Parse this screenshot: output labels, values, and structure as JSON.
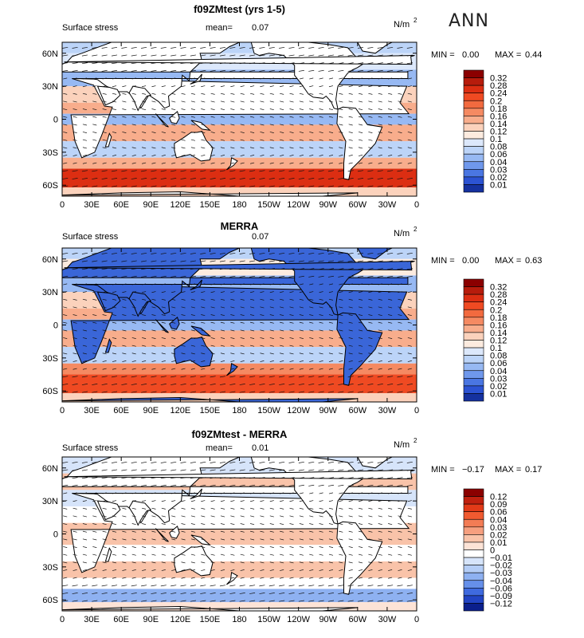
{
  "season_label": "ANN",
  "chart_data": [
    {
      "type": "heatmap",
      "title": "f09ZMtest (yrs 1-5)",
      "subtitle_left": "Surface stress",
      "mean_label": "mean=",
      "mean_value": "0.07",
      "units": "N/m",
      "units_exp": "2",
      "min_label": "MIN =",
      "min_value": "0.00",
      "max_label": "MAX =",
      "max_value": "0.44",
      "lat_ticks": [
        "60N",
        "30N",
        "0",
        "30S",
        "60S"
      ],
      "lat_values": [
        60,
        30,
        0,
        -30,
        -60
      ],
      "lon_ticks": [
        "0",
        "30E",
        "60E",
        "90E",
        "120E",
        "150E",
        "180",
        "150W",
        "120W",
        "90W",
        "60W",
        "30W",
        "0"
      ],
      "xlim": [
        0,
        360
      ],
      "ylim": [
        -70,
        70
      ],
      "colorbar_levels": [
        "0.32",
        "0.28",
        "0.24",
        "0.2",
        "0.18",
        "0.16",
        "0.14",
        "0.12",
        "0.1",
        "0.08",
        "0.06",
        "0.04",
        "0.03",
        "0.02",
        "0.01"
      ],
      "colorbar_colors": [
        "#8b0000",
        "#b71c0c",
        "#dc2e12",
        "#ef4a22",
        "#f26a3f",
        "#f58a62",
        "#f8ad8c",
        "#fbd2bc",
        "#fcebdf",
        "#dce8fb",
        "#bcd4f8",
        "#97b9f3",
        "#6f98ec",
        "#4a76e2",
        "#2c53d3",
        "#15319f"
      ],
      "bands": [
        {
          "lat": [
            60,
            70
          ],
          "level": 5
        },
        {
          "lat": [
            45,
            60
          ],
          "level": 6
        },
        {
          "lat": [
            30,
            45
          ],
          "level": 4
        },
        {
          "lat": [
            15,
            30
          ],
          "level": 8
        },
        {
          "lat": [
            5,
            15
          ],
          "level": 9
        },
        {
          "lat": [
            -5,
            5
          ],
          "level": 4
        },
        {
          "lat": [
            -20,
            -5
          ],
          "level": 9
        },
        {
          "lat": [
            -35,
            -20
          ],
          "level": 5
        },
        {
          "lat": [
            -45,
            -35
          ],
          "level": 9
        },
        {
          "lat": [
            -62,
            -45
          ],
          "level": 13
        },
        {
          "lat": [
            -70,
            -62
          ],
          "level": 8
        }
      ]
    },
    {
      "type": "heatmap",
      "title": "MERRA",
      "subtitle_left": "Surface stress",
      "mean_label": "mean=",
      "mean_value": "0.07",
      "units": "N/m",
      "units_exp": "2",
      "min_label": "MIN =",
      "min_value": "0.00",
      "max_label": "MAX =",
      "max_value": "0.63",
      "lat_ticks": [
        "60N",
        "30N",
        "0",
        "30S",
        "60S"
      ],
      "lat_values": [
        60,
        30,
        0,
        -30,
        -60
      ],
      "lon_ticks": [
        "0",
        "30E",
        "60E",
        "90E",
        "120E",
        "150E",
        "180",
        "150W",
        "120W",
        "90W",
        "60W",
        "30W",
        "0"
      ],
      "xlim": [
        0,
        360
      ],
      "ylim": [
        -70,
        70
      ],
      "colorbar_levels": [
        "0.32",
        "0.28",
        "0.24",
        "0.2",
        "0.18",
        "0.16",
        "0.14",
        "0.12",
        "0.1",
        "0.08",
        "0.06",
        "0.04",
        "0.03",
        "0.02",
        "0.01"
      ],
      "colorbar_colors": [
        "#8b0000",
        "#b71c0c",
        "#dc2e12",
        "#ef4a22",
        "#f26a3f",
        "#f58a62",
        "#f8ad8c",
        "#fbd2bc",
        "#fcebdf",
        "#dce8fb",
        "#bcd4f8",
        "#97b9f3",
        "#6f98ec",
        "#4a76e2",
        "#2c53d3",
        "#15319f"
      ],
      "bands": [
        {
          "lat": [
            60,
            70
          ],
          "level": 5
        },
        {
          "lat": [
            45,
            60
          ],
          "level": 7
        },
        {
          "lat": [
            30,
            45
          ],
          "level": 4
        },
        {
          "lat": [
            15,
            30
          ],
          "level": 8
        },
        {
          "lat": [
            5,
            15
          ],
          "level": 9
        },
        {
          "lat": [
            -5,
            5
          ],
          "level": 4
        },
        {
          "lat": [
            -20,
            -5
          ],
          "level": 9
        },
        {
          "lat": [
            -35,
            -20
          ],
          "level": 5
        },
        {
          "lat": [
            -45,
            -35
          ],
          "level": 10
        },
        {
          "lat": [
            -62,
            -45
          ],
          "level": 12
        },
        {
          "lat": [
            -70,
            -62
          ],
          "level": 8
        }
      ]
    },
    {
      "type": "heatmap",
      "title": "f09ZMtest - MERRA",
      "subtitle_left": "Surface stress",
      "mean_label": "mean=",
      "mean_value": "0.01",
      "units": "N/m",
      "units_exp": "2",
      "min_label": "MIN =",
      "min_value": "−0.17",
      "max_label": "MAX =",
      "max_value": "0.17",
      "lat_ticks": [
        "60N",
        "30N",
        "0",
        "30S",
        "60S"
      ],
      "lat_values": [
        60,
        30,
        0,
        -30,
        -60
      ],
      "lon_ticks": [
        "0",
        "30E",
        "60E",
        "90E",
        "120E",
        "150E",
        "180",
        "150W",
        "120W",
        "90W",
        "60W",
        "30W",
        "0"
      ],
      "xlim": [
        0,
        360
      ],
      "ylim": [
        -70,
        70
      ],
      "colorbar_levels": [
        "0.12",
        "0.09",
        "0.06",
        "0.04",
        "0.03",
        "0.02",
        "0.01",
        "0",
        "−0.01",
        "−0.02",
        "−0.03",
        "−0.04",
        "−0.06",
        "−0.09",
        "−0.12"
      ],
      "colorbar_colors": [
        "#8b0000",
        "#c0200f",
        "#e23a18",
        "#f05a30",
        "#f37c55",
        "#f69f7f",
        "#f9c3a9",
        "#fde3d6",
        "#ffffff",
        "#d6e4fa",
        "#b4cdf6",
        "#8eb1f1",
        "#6690ea",
        "#3f6adf",
        "#2244c4",
        "#0b1f8c"
      ],
      "bands": [
        {
          "lat": [
            55,
            70
          ],
          "level": 6
        },
        {
          "lat": [
            40,
            55
          ],
          "level": 9
        },
        {
          "lat": [
            25,
            40
          ],
          "level": 6
        },
        {
          "lat": [
            10,
            25
          ],
          "level": 7
        },
        {
          "lat": [
            -10,
            10
          ],
          "level": 9
        },
        {
          "lat": [
            -25,
            -10
          ],
          "level": 7
        },
        {
          "lat": [
            -40,
            -25
          ],
          "level": 9
        },
        {
          "lat": [
            -50,
            -40
          ],
          "level": 7
        },
        {
          "lat": [
            -62,
            -50
          ],
          "level": 4
        },
        {
          "lat": [
            -70,
            -62
          ],
          "level": 8
        }
      ]
    }
  ]
}
